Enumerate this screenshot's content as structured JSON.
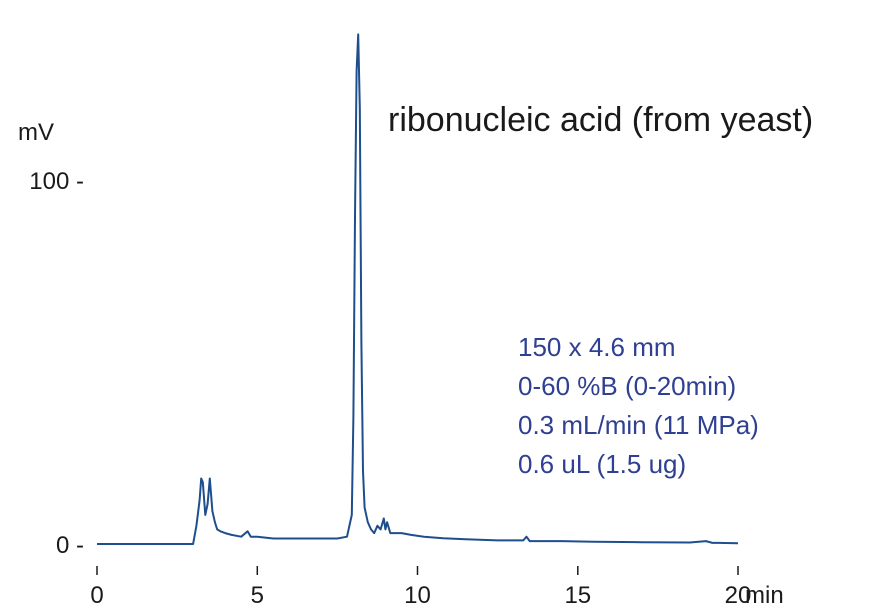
{
  "chart_data": {
    "type": "line",
    "title": "ribonucleic acid (from yeast)",
    "xlabel": "min",
    "ylabel": "mV",
    "xlim": [
      0,
      20
    ],
    "ylim": [
      0,
      140
    ],
    "x_ticks": [
      {
        "value": 0,
        "label": "0"
      },
      {
        "value": 5,
        "label": "5"
      },
      {
        "value": 10,
        "label": "10"
      },
      {
        "value": 15,
        "label": "15"
      },
      {
        "value": 20,
        "label": "20"
      }
    ],
    "y_ticks": [
      {
        "value": 0,
        "label": "0 -"
      },
      {
        "value": 100,
        "label": "100 -"
      }
    ],
    "annotations": [
      "150 x 4.6 mm",
      "0-60 %B (0-20min)",
      "0.3 mL/min (11 MPa)",
      "0.6 uL (1.5 ug)"
    ],
    "grid": false,
    "line_color": "#1f4e8c",
    "annotation_color": "#2f3f92",
    "series": [
      {
        "x": [
          0,
          2.9,
          3.0,
          3.1,
          3.2,
          3.25,
          3.3,
          3.38,
          3.45,
          3.52,
          3.6,
          3.68,
          3.75,
          3.85,
          4.0,
          4.2,
          4.5,
          4.7,
          4.8,
          5.0,
          5.5,
          6.0,
          6.5,
          7.0,
          7.5,
          7.8,
          7.95,
          8.0,
          8.05,
          8.1,
          8.15,
          8.2,
          8.25,
          8.3,
          8.35,
          8.45,
          8.55,
          8.65,
          8.75,
          8.85,
          8.95,
          9.0,
          9.05,
          9.15,
          9.3,
          9.5,
          9.8,
          10.2,
          10.8,
          11.5,
          12.5,
          13.3,
          13.4,
          13.5,
          14.5,
          15.5,
          17.0,
          18.5,
          19.0,
          19.2,
          19.4,
          20.0
        ],
        "y": [
          0,
          0,
          0,
          5,
          12,
          18,
          17,
          8,
          11,
          18,
          9,
          6,
          4,
          3.5,
          3,
          2.5,
          2,
          3.5,
          2,
          2,
          1.5,
          1.5,
          1.5,
          1.5,
          1.5,
          2,
          8,
          35,
          90,
          130,
          140,
          120,
          55,
          20,
          10,
          6,
          4,
          3,
          5,
          4,
          7,
          4,
          6,
          3,
          3,
          3,
          2.5,
          2,
          1.6,
          1.3,
          1.0,
          1.0,
          2.0,
          0.8,
          0.8,
          0.6,
          0.5,
          0.4,
          0.8,
          0.3,
          0.3,
          0.2
        ]
      }
    ]
  }
}
